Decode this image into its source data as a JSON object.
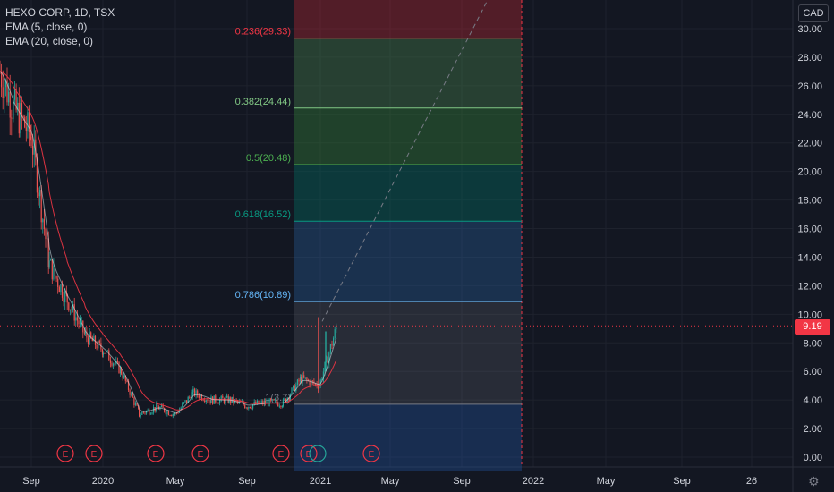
{
  "header": {
    "symbol_line": "HEXO CORP, 1D, TSX",
    "indicators": [
      "EMA (5, close, 0)",
      "EMA (20, close, 0)"
    ]
  },
  "currency_badge": "CAD",
  "last_price": "9.19",
  "colors": {
    "background": "#131722",
    "grid": "#1e222d",
    "up": "#26a69a",
    "down": "#ef5350",
    "ema_fast": "#e0f7fa",
    "ema_slow": "#f23645",
    "earnings": "#f23645",
    "axis_text": "#d1d4dc"
  },
  "chart_data": {
    "type": "line",
    "y_ticks": [
      "0.00",
      "2.00",
      "4.00",
      "6.00",
      "8.00",
      "10.00",
      "12.00",
      "14.00",
      "16.00",
      "18.00",
      "20.00",
      "22.00",
      "24.00",
      "26.00",
      "28.00",
      "30.00"
    ],
    "ylim": [
      -0.6,
      31.5
    ],
    "x_ticks": [
      "Sep",
      "2020",
      "May",
      "Sep",
      "2021",
      "May",
      "Sep",
      "2022",
      "May",
      "Sep",
      "26"
    ],
    "price_series": [
      {
        "date": "2019-07",
        "value": 27.0
      },
      {
        "date": "2019-08",
        "value": 24.5
      },
      {
        "date": "2019-09",
        "value": 22.5
      },
      {
        "date": "2019-10",
        "value": 13.5
      },
      {
        "date": "2019-11",
        "value": 11.0
      },
      {
        "date": "2019-12",
        "value": 8.5
      },
      {
        "date": "2020-01",
        "value": 7.5
      },
      {
        "date": "2020-02",
        "value": 6.0
      },
      {
        "date": "2020-03",
        "value": 3.0
      },
      {
        "date": "2020-04",
        "value": 3.5
      },
      {
        "date": "2020-05",
        "value": 3.0
      },
      {
        "date": "2020-06",
        "value": 4.5
      },
      {
        "date": "2020-07",
        "value": 4.0
      },
      {
        "date": "2020-08",
        "value": 4.0
      },
      {
        "date": "2020-09",
        "value": 3.6
      },
      {
        "date": "2020-10",
        "value": 3.8
      },
      {
        "date": "2020-11",
        "value": 3.8
      },
      {
        "date": "2020-12",
        "value": 5.5
      },
      {
        "date": "2021-01",
        "value": 5.0
      },
      {
        "date": "2021-02",
        "value": 9.19
      }
    ],
    "fib_levels": [
      {
        "label": "0.236(29.33)",
        "value": 29.33,
        "color": "#f23645"
      },
      {
        "label": "0.382(24.44)",
        "value": 24.44,
        "color": "#81c784"
      },
      {
        "label": "0.5(20.48)",
        "value": 20.48,
        "color": "#4caf50"
      },
      {
        "label": "0.618(16.52)",
        "value": 16.52,
        "color": "#089981"
      },
      {
        "label": "0.786(10.89)",
        "value": 10.89,
        "color": "#64b5f6"
      },
      {
        "label": "1(3.7)",
        "value": 3.7,
        "color": "#787b86"
      }
    ],
    "earnings_markers": [
      "E",
      "E",
      "E",
      "E",
      "E",
      "E",
      "E"
    ],
    "last_price": 9.19
  }
}
